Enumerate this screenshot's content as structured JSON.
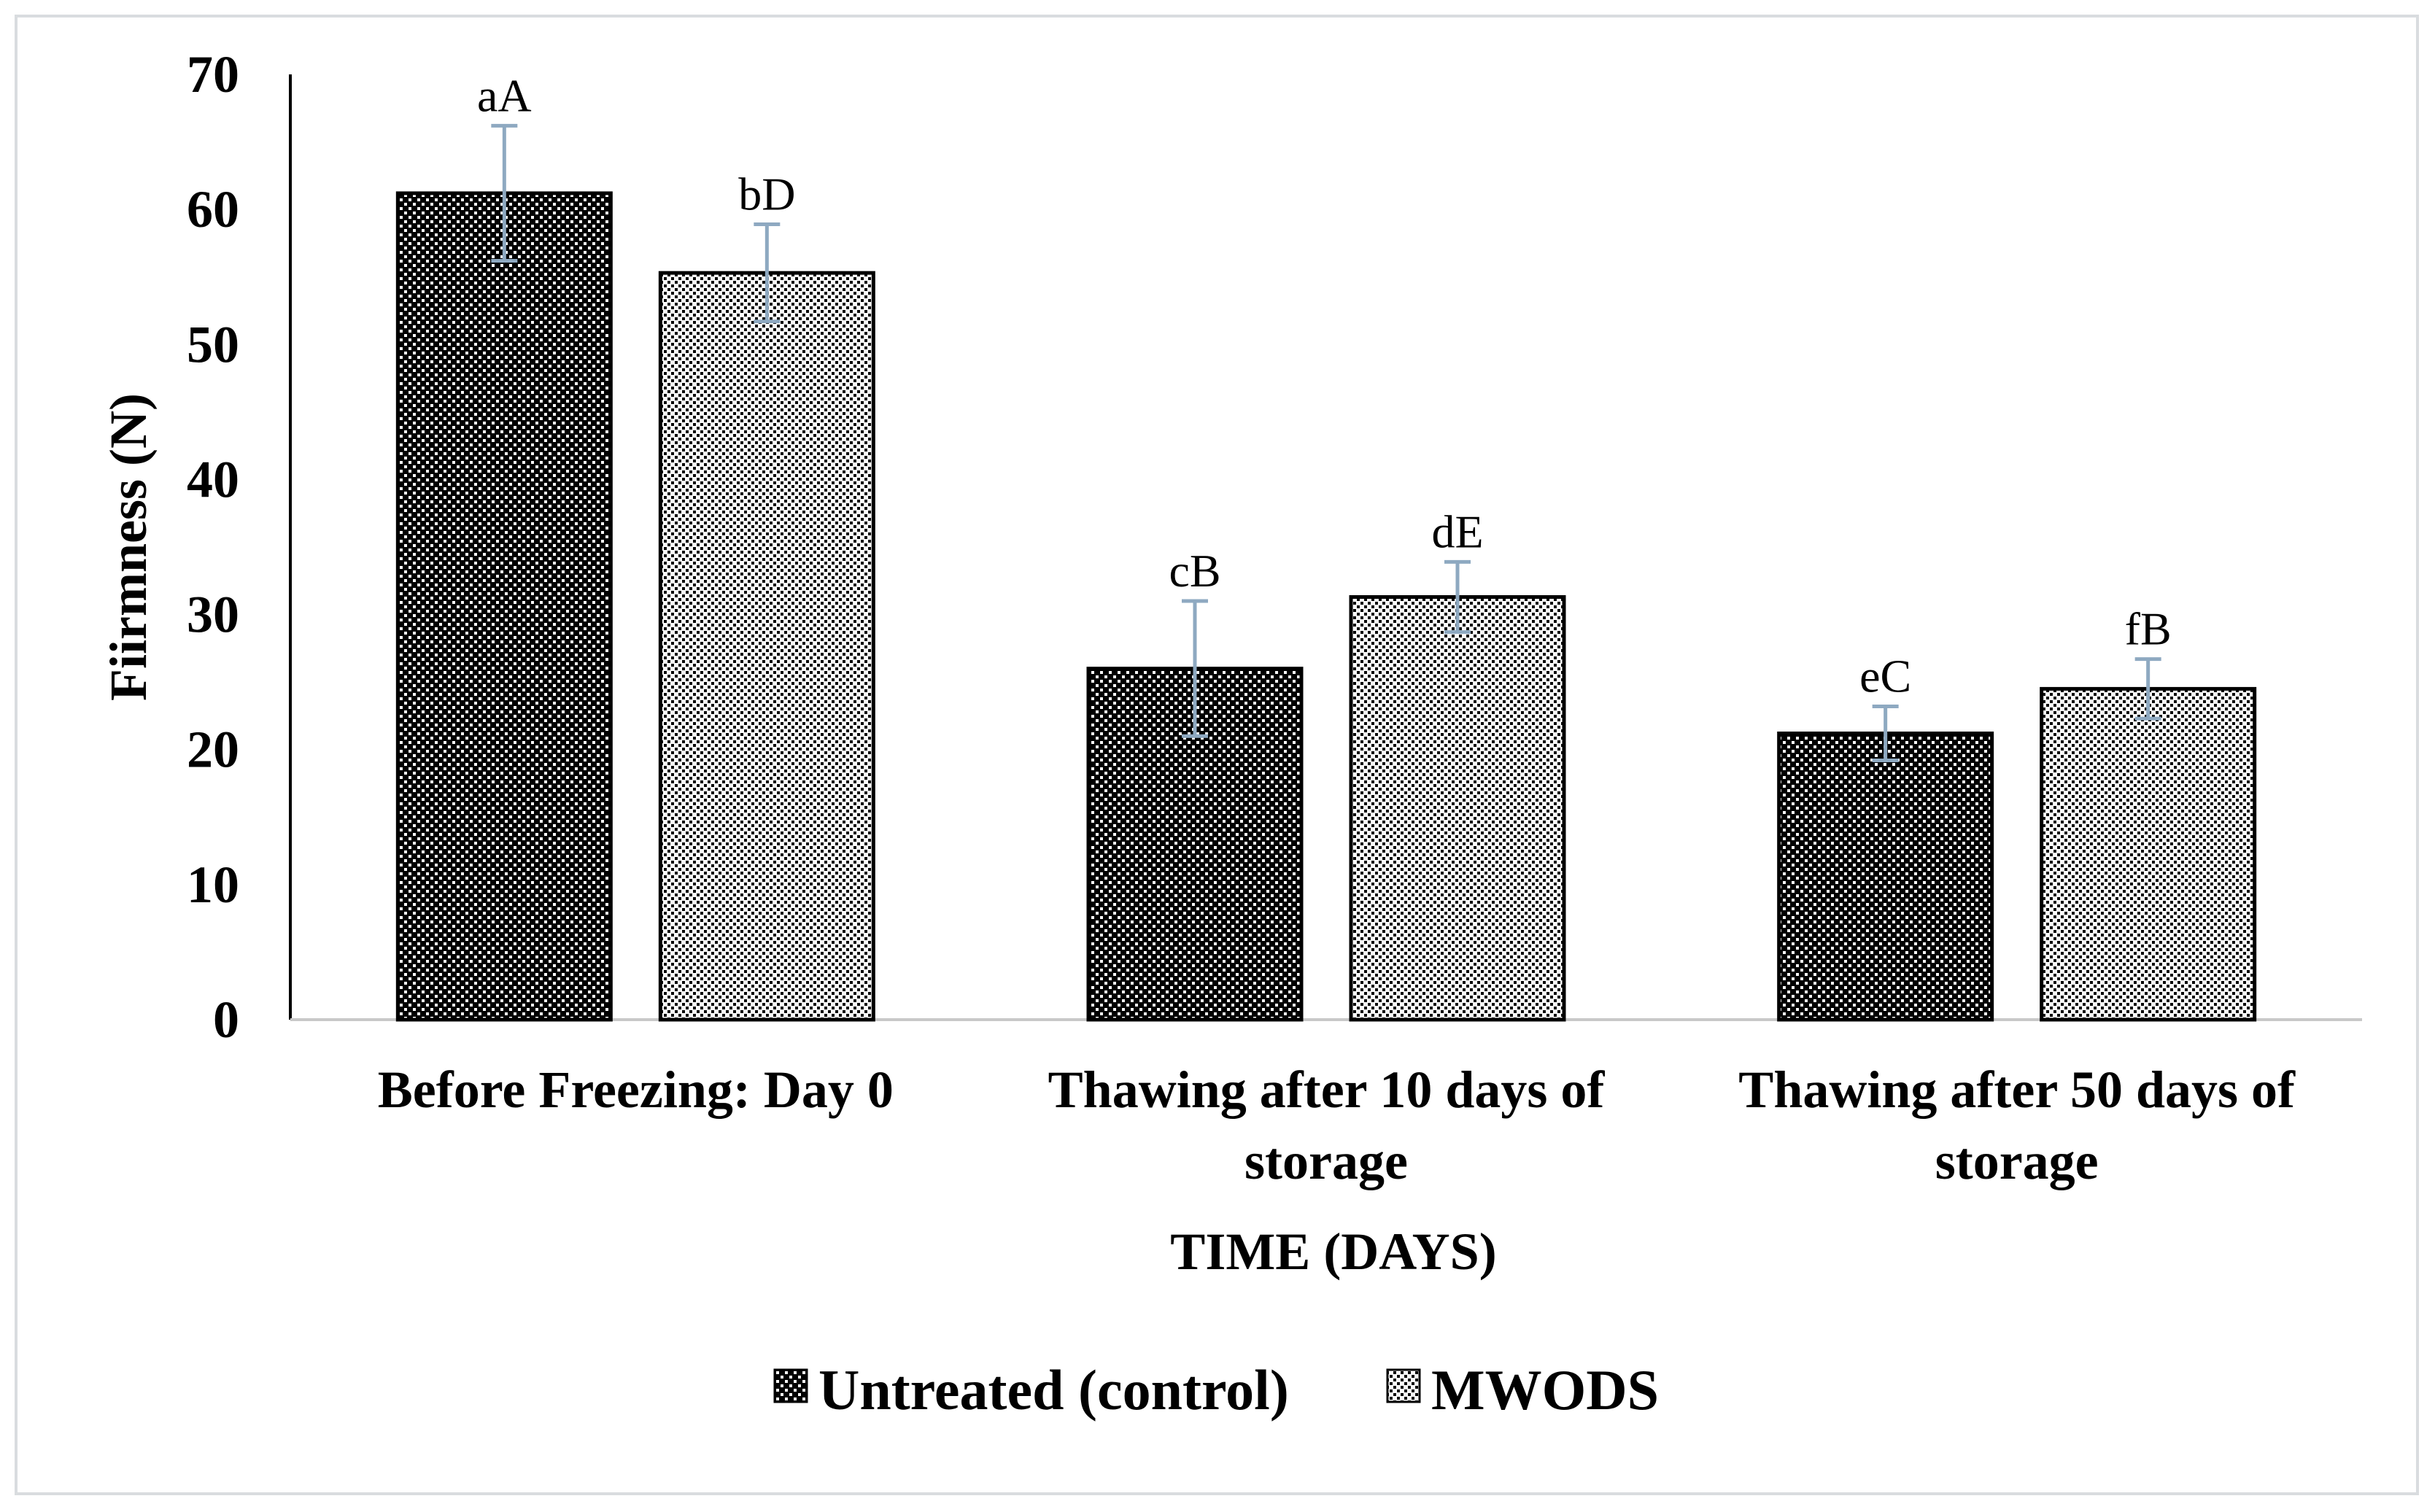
{
  "chart_data": {
    "type": "bar",
    "title": "",
    "xlabel": "TIME (DAYS)",
    "ylabel": "Fiirmness (N)",
    "ylim": [
      0,
      70
    ],
    "yticks": [
      0,
      10,
      20,
      30,
      40,
      50,
      60,
      70
    ],
    "grid": false,
    "legend_position": "bottom",
    "categories": [
      [
        "Before Freezing: Day 0"
      ],
      [
        "Thawing after 10 days of",
        "storage"
      ],
      [
        "Thawing after 50 days of",
        "storage"
      ]
    ],
    "series": [
      {
        "name": "Untreated (control)",
        "pattern": "dark-dots",
        "fill_color": "#000000",
        "dot_color": "#ffffff",
        "values": [
          61.2,
          26.0,
          21.2
        ],
        "errors": [
          5.0,
          5.0,
          2.0
        ],
        "labels": [
          "aA",
          "cB",
          "eC"
        ]
      },
      {
        "name": "MWODS",
        "pattern": "light-checker",
        "fill_color": "#ffffff",
        "dot_color": "#000000",
        "values": [
          55.3,
          31.3,
          24.5
        ],
        "errors": [
          3.6,
          2.6,
          2.2
        ],
        "labels": [
          "bD",
          "dE",
          "fB"
        ]
      }
    ],
    "colors": {
      "axis": "#000000",
      "error_bar": "#8ea9c1",
      "frame": "#d9dcdf"
    }
  }
}
